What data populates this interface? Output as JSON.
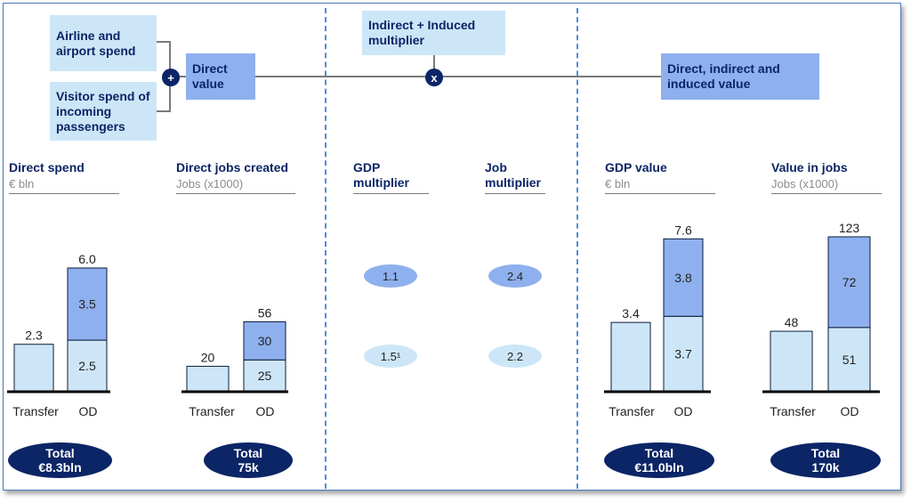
{
  "flow": {
    "box_airline": "Airline and airport spend",
    "box_visitor": "Visitor spend of incoming passengers",
    "plus": "+",
    "box_direct": "Direct value",
    "box_multiplier": "Indirect + Induced multiplier",
    "times": "x",
    "box_total": "Direct, indirect and induced value"
  },
  "headers": {
    "direct_spend": "Direct spend",
    "direct_spend_unit": "€ bln",
    "direct_jobs": "Direct jobs created",
    "direct_jobs_unit": "Jobs (x1000)",
    "gdp_mult_1": "GDP",
    "gdp_mult_2": "multiplier",
    "job_mult_1": "Job",
    "job_mult_2": "multiplier",
    "gdp_value": "GDP value",
    "gdp_value_unit": "€ bln",
    "jobs_value": "Value in jobs",
    "jobs_value_unit": "Jobs (x1000)"
  },
  "multipliers": {
    "gdp_od": "1.1",
    "gdp_transfer": "1.5¹",
    "job_od": "2.4",
    "job_transfer": "2.2"
  },
  "totals": {
    "label": "Total",
    "direct_spend": "€8.3bln",
    "direct_jobs": "75k",
    "gdp_value": "€11.0bln",
    "jobs_value": "170k"
  },
  "colors": {
    "navy": "#0b2566",
    "light": "#cde6f7",
    "medium": "#8fb0ee",
    "divider": "#4f8fd6"
  },
  "chart_data": [
    {
      "type": "bar",
      "title": "Direct spend",
      "ylabel": "€ bln",
      "categories": [
        "Transfer",
        "OD"
      ],
      "series": [
        {
          "values": [
            2.3,
            2.5
          ]
        },
        {
          "values": [
            null,
            3.5
          ]
        }
      ],
      "totals": [
        "2.3",
        "6.0"
      ],
      "labels": [
        [
          "2.3",
          "2.5"
        ],
        [
          "",
          "3.5"
        ]
      ],
      "ylim": [
        0,
        6.0
      ]
    },
    {
      "type": "bar",
      "title": "Direct jobs created",
      "ylabel": "Jobs (x1000)",
      "categories": [
        "Transfer",
        "OD"
      ],
      "series": [
        {
          "values": [
            20,
            25
          ]
        },
        {
          "values": [
            null,
            30
          ]
        }
      ],
      "totals": [
        "20",
        "56"
      ],
      "labels": [
        [
          "20",
          "25"
        ],
        [
          "",
          "30"
        ]
      ],
      "ylim": [
        0,
        56
      ]
    },
    {
      "type": "bar",
      "title": "GDP value",
      "ylabel": "€ bln",
      "categories": [
        "Transfer",
        "OD"
      ],
      "series": [
        {
          "values": [
            3.4,
            3.7
          ]
        },
        {
          "values": [
            null,
            3.8
          ]
        }
      ],
      "totals": [
        "3.4",
        "7.6"
      ],
      "labels": [
        [
          "3.4",
          "3.7"
        ],
        [
          "",
          "3.8"
        ]
      ],
      "ylim": [
        0,
        7.6
      ]
    },
    {
      "type": "bar",
      "title": "Value in jobs",
      "ylabel": "Jobs (x1000)",
      "categories": [
        "Transfer",
        "OD"
      ],
      "series": [
        {
          "values": [
            48,
            51
          ]
        },
        {
          "values": [
            null,
            72
          ]
        }
      ],
      "totals": [
        "48",
        "123"
      ],
      "labels": [
        [
          "48",
          "51"
        ],
        [
          "",
          "72"
        ]
      ],
      "ylim": [
        0,
        123
      ]
    }
  ]
}
